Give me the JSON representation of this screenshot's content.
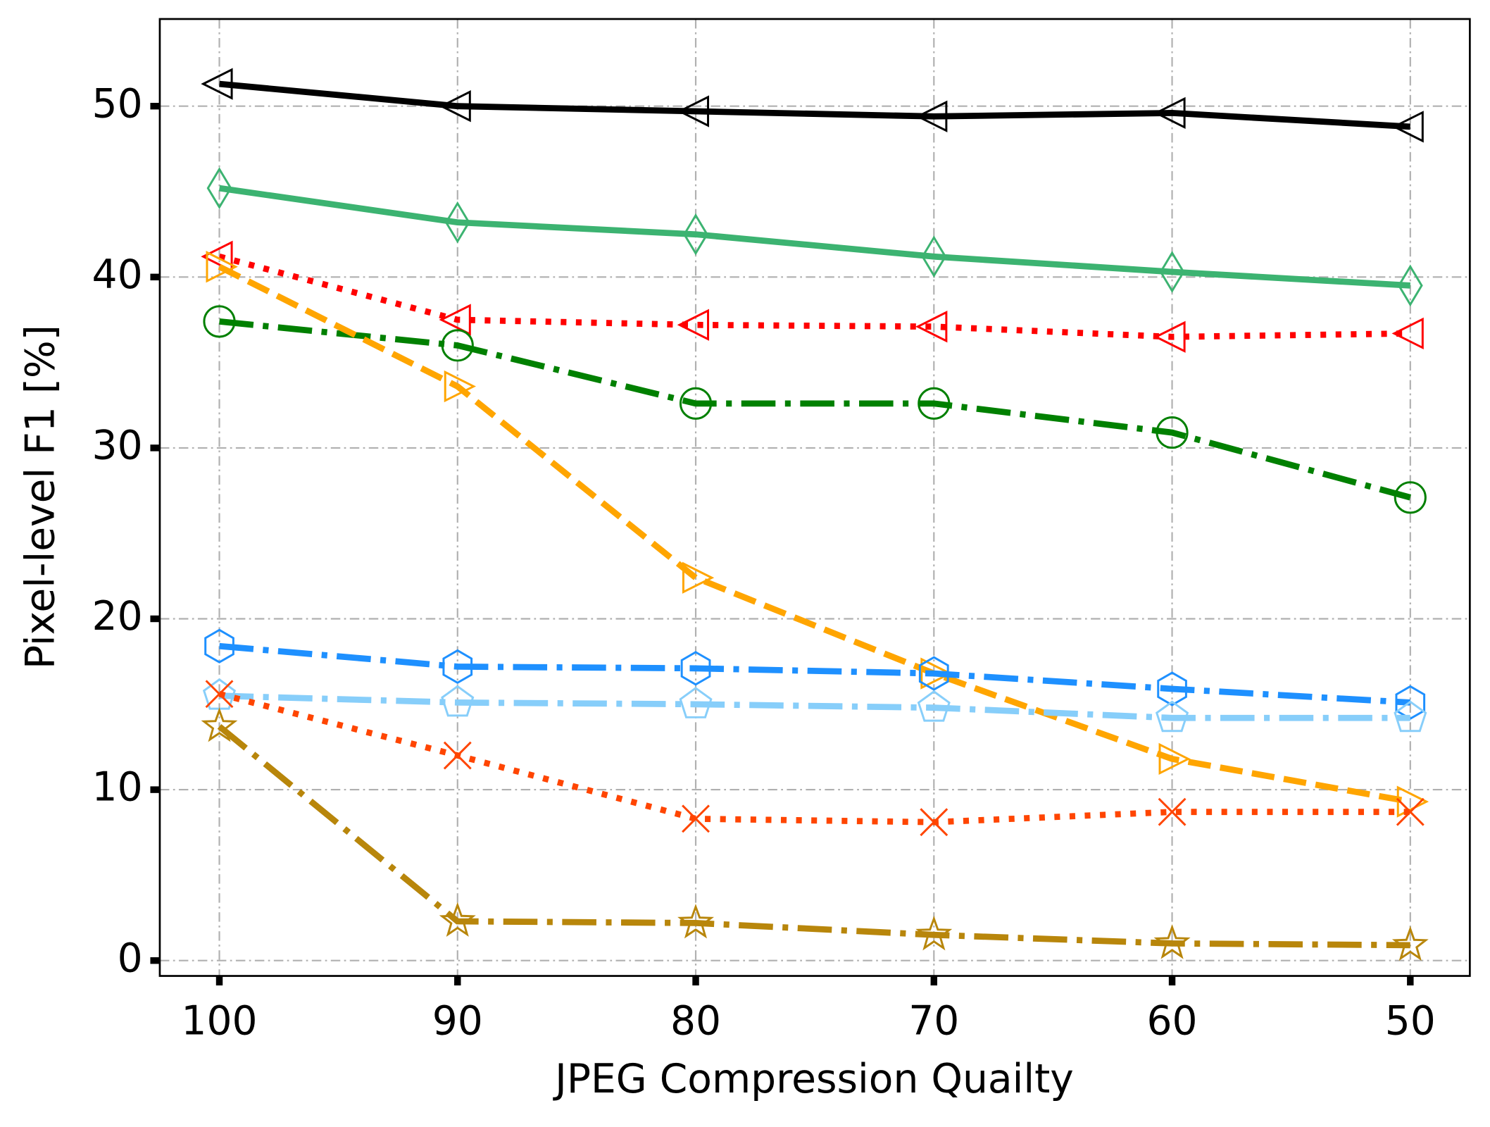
{
  "chart_data": {
    "type": "line",
    "xlabel": "JPEG Compression Quailty",
    "ylabel": "Pixel-level F1 [%]",
    "x": [
      100,
      90,
      80,
      70,
      60,
      50
    ],
    "xlim": [
      102.5,
      47.5
    ],
    "xticks": [
      100,
      90,
      80,
      70,
      60,
      50
    ],
    "ylim": [
      -0.9,
      55.1
    ],
    "yticks": [
      0,
      10,
      20,
      30,
      40,
      50
    ],
    "grid": true,
    "series": [
      {
        "color": "#000000",
        "linestyle": "solid",
        "marker": "triangle-left",
        "values": [
          51.3,
          50.0,
          49.7,
          49.4,
          49.6,
          48.8
        ]
      },
      {
        "color": "#3cb371",
        "linestyle": "solid",
        "marker": "thin-diamond",
        "values": [
          45.2,
          43.2,
          42.5,
          41.2,
          40.3,
          39.5
        ]
      },
      {
        "color": "#ff0000",
        "linestyle": "dotted",
        "marker": "triangle-left",
        "values": [
          41.2,
          37.5,
          37.2,
          37.1,
          36.5,
          36.7
        ]
      },
      {
        "color": "#008000",
        "linestyle": "dashdot",
        "marker": "circle",
        "values": [
          37.4,
          36.0,
          32.6,
          32.6,
          30.9,
          27.1
        ]
      },
      {
        "color": "#ffa500",
        "linestyle": "dashed",
        "marker": "triangle-right",
        "values": [
          40.6,
          33.6,
          22.4,
          16.8,
          11.8,
          9.3
        ]
      },
      {
        "color": "#1e90ff",
        "linestyle": "dashdot",
        "marker": "hexagon",
        "values": [
          18.4,
          17.2,
          17.1,
          16.8,
          15.9,
          15.1
        ]
      },
      {
        "color": "#87cefa",
        "linestyle": "dashdot",
        "marker": "pentagon",
        "values": [
          15.5,
          15.1,
          15.0,
          14.8,
          14.2,
          14.2
        ]
      },
      {
        "color": "#ff4500",
        "linestyle": "dotted",
        "marker": "x",
        "values": [
          15.6,
          12.0,
          8.3,
          8.1,
          8.7,
          8.7
        ]
      },
      {
        "color": "#b8860b",
        "linestyle": "dashdot",
        "marker": "star",
        "values": [
          13.7,
          2.3,
          2.2,
          1.5,
          1.0,
          0.9
        ]
      }
    ]
  }
}
